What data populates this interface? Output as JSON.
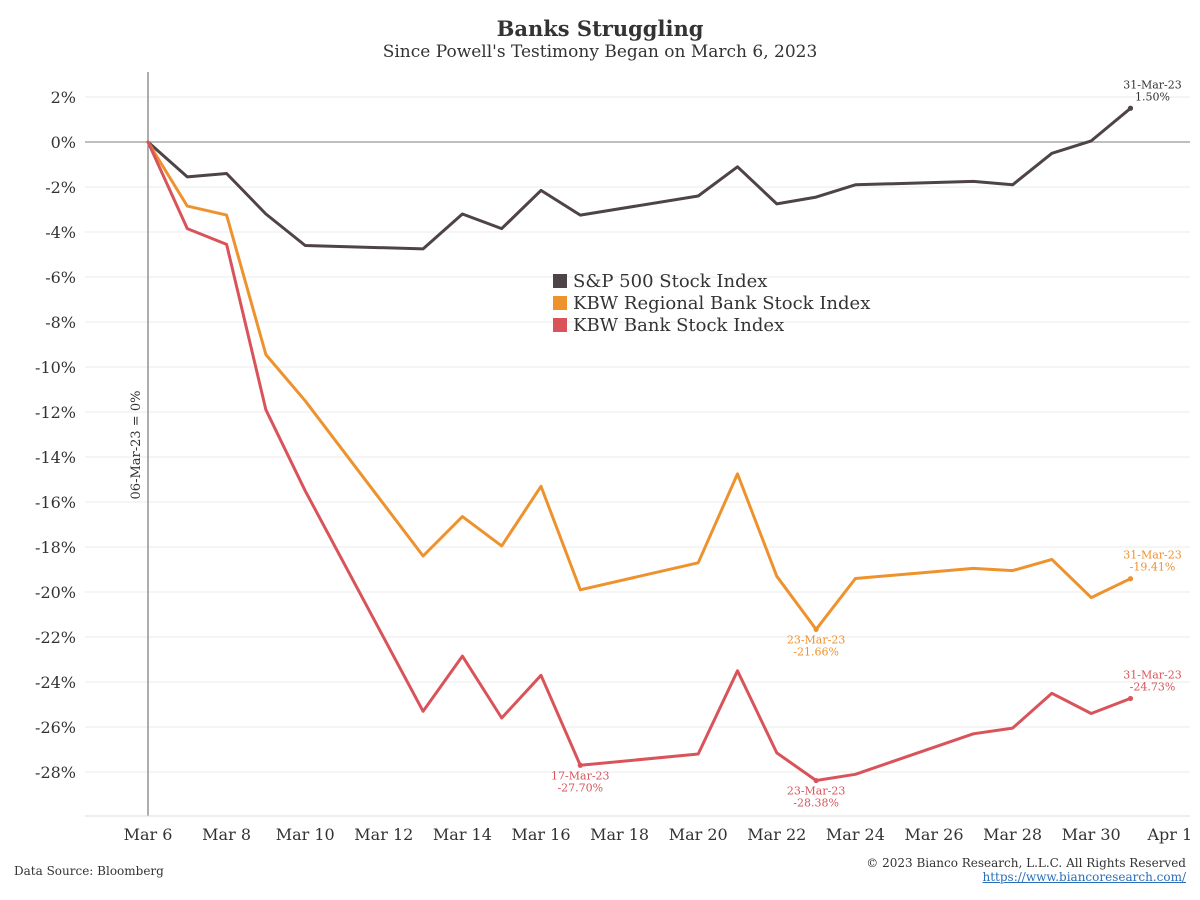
{
  "chart_data": {
    "type": "line",
    "title": "Banks Struggling",
    "subtitle": "Since Powell's Testimony Began on March 6, 2023",
    "xlabel": "",
    "ylabel": "",
    "ylim": [
      -30,
      3
    ],
    "x_tick_labels": [
      "Mar 6",
      "Mar 8",
      "Mar 10",
      "Mar 12",
      "Mar 14",
      "Mar 16",
      "Mar 18",
      "Mar 20",
      "Mar 22",
      "Mar 24",
      "Mar 26",
      "Mar 28",
      "Mar 30",
      "Apr 1"
    ],
    "y_ticks": [
      2,
      0,
      -2,
      -4,
      -6,
      -8,
      -10,
      -12,
      -14,
      -16,
      -18,
      -20,
      -22,
      -24,
      -26,
      -28
    ],
    "y_tick_labels": [
      "2%",
      "0%",
      "-2%",
      "-4%",
      "-6%",
      "-8%",
      "-10%",
      "-12%",
      "-14%",
      "-16%",
      "-18%",
      "-20%",
      "-22%",
      "-24%",
      "-26%",
      "-28%"
    ],
    "grid": true,
    "legend_position": "center",
    "baseline_label": "06-Mar-23 = 0%",
    "series": [
      {
        "name": "S&P 500 Stock Index",
        "color": "#4e4346",
        "points": [
          [
            "2023-03-06",
            0
          ],
          [
            "2023-03-07",
            -1.55
          ],
          [
            "2023-03-08",
            -1.4
          ],
          [
            "2023-03-09",
            -3.2
          ],
          [
            "2023-03-10",
            -4.6
          ],
          [
            "2023-03-13",
            -4.75
          ],
          [
            "2023-03-14",
            -3.2
          ],
          [
            "2023-03-15",
            -3.85
          ],
          [
            "2023-03-16",
            -2.15
          ],
          [
            "2023-03-17",
            -3.25
          ],
          [
            "2023-03-20",
            -2.4
          ],
          [
            "2023-03-21",
            -1.1
          ],
          [
            "2023-03-22",
            -2.75
          ],
          [
            "2023-03-23",
            -2.45
          ],
          [
            "2023-03-24",
            -1.9
          ],
          [
            "2023-03-27",
            -1.75
          ],
          [
            "2023-03-28",
            -1.9
          ],
          [
            "2023-03-29",
            -0.5
          ],
          [
            "2023-03-30",
            0.05
          ],
          [
            "2023-03-31",
            1.5
          ]
        ]
      },
      {
        "name": "KBW Regional Bank Stock Index",
        "color": "#ee922e",
        "points": [
          [
            "2023-03-06",
            0
          ],
          [
            "2023-03-07",
            -2.85
          ],
          [
            "2023-03-08",
            -3.25
          ],
          [
            "2023-03-09",
            -9.45
          ],
          [
            "2023-03-10",
            -11.5
          ],
          [
            "2023-03-13",
            -18.4
          ],
          [
            "2023-03-14",
            -16.65
          ],
          [
            "2023-03-15",
            -17.95
          ],
          [
            "2023-03-16",
            -15.3
          ],
          [
            "2023-03-17",
            -19.9
          ],
          [
            "2023-03-20",
            -18.7
          ],
          [
            "2023-03-21",
            -14.75
          ],
          [
            "2023-03-22",
            -19.3
          ],
          [
            "2023-03-23",
            -21.66
          ],
          [
            "2023-03-24",
            -19.4
          ],
          [
            "2023-03-27",
            -18.95
          ],
          [
            "2023-03-28",
            -19.05
          ],
          [
            "2023-03-29",
            -18.55
          ],
          [
            "2023-03-30",
            -20.25
          ],
          [
            "2023-03-31",
            -19.41
          ]
        ]
      },
      {
        "name": "KBW Bank Stock Index",
        "color": "#d9545a",
        "points": [
          [
            "2023-03-06",
            0
          ],
          [
            "2023-03-07",
            -3.85
          ],
          [
            "2023-03-08",
            -4.55
          ],
          [
            "2023-03-09",
            -11.9
          ],
          [
            "2023-03-10",
            -15.5
          ],
          [
            "2023-03-13",
            -25.3
          ],
          [
            "2023-03-14",
            -22.85
          ],
          [
            "2023-03-15",
            -25.6
          ],
          [
            "2023-03-16",
            -23.7
          ],
          [
            "2023-03-17",
            -27.7
          ],
          [
            "2023-03-20",
            -27.2
          ],
          [
            "2023-03-21",
            -23.5
          ],
          [
            "2023-03-22",
            -27.15
          ],
          [
            "2023-03-23",
            -28.38
          ],
          [
            "2023-03-24",
            -28.1
          ],
          [
            "2023-03-27",
            -26.3
          ],
          [
            "2023-03-28",
            -26.05
          ],
          [
            "2023-03-29",
            -24.5
          ],
          [
            "2023-03-30",
            -25.4
          ],
          [
            "2023-03-31",
            -24.73
          ]
        ]
      }
    ],
    "annotations": [
      {
        "series": 0,
        "date": "2023-03-31",
        "lines": [
          "31-Mar-23",
          "1.50%"
        ],
        "position": "above"
      },
      {
        "series": 1,
        "date": "2023-03-31",
        "lines": [
          "31-Mar-23",
          "-19.41%"
        ],
        "position": "above"
      },
      {
        "series": 1,
        "date": "2023-03-23",
        "lines": [
          "23-Mar-23",
          "-21.66%"
        ],
        "position": "below"
      },
      {
        "series": 2,
        "date": "2023-03-31",
        "lines": [
          "31-Mar-23",
          "-24.73%"
        ],
        "position": "above"
      },
      {
        "series": 2,
        "date": "2023-03-17",
        "lines": [
          "17-Mar-23",
          "-27.70%"
        ],
        "position": "below"
      },
      {
        "series": 2,
        "date": "2023-03-23",
        "lines": [
          "23-Mar-23",
          "-28.38%"
        ],
        "position": "below"
      }
    ]
  },
  "footer": {
    "source": "Data Source: Bloomberg",
    "copyright": "© 2023 Bianco Research, L.L.C. All Rights Reserved",
    "url": "https://www.biancoresearch.com/"
  }
}
